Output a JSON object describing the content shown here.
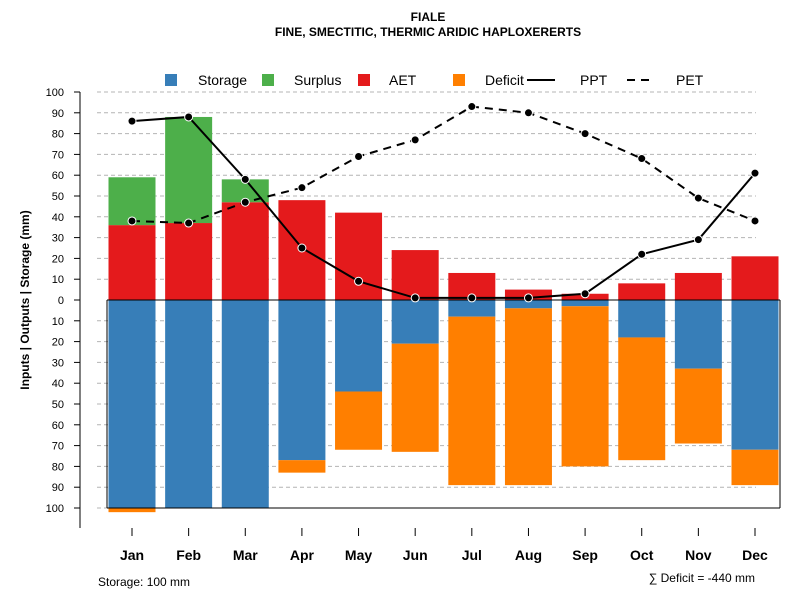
{
  "chart_data": {
    "type": "bar",
    "title": "FIALE",
    "subtitle": "FINE, SMECTITIC, THERMIC ARIDIC HAPLOXERERTS",
    "ylabel": "Inputs | Outputs | Storage    (mm)",
    "ylim": [
      -100,
      100
    ],
    "yticks": [
      100,
      90,
      80,
      70,
      60,
      50,
      40,
      30,
      20,
      10,
      0,
      10,
      20,
      30,
      40,
      50,
      60,
      70,
      80,
      90,
      100
    ],
    "categories": [
      "Jan",
      "Feb",
      "Mar",
      "Apr",
      "May",
      "Jun",
      "Jul",
      "Aug",
      "Sep",
      "Oct",
      "Nov",
      "Dec"
    ],
    "series": [
      {
        "name": "Storage",
        "color": "#377eb8",
        "values": [
          100,
          100,
          100,
          77,
          44,
          21,
          8,
          4,
          3,
          18,
          33,
          72
        ]
      },
      {
        "name": "Surplus",
        "color": "#4daf4a",
        "values": [
          23,
          51,
          11,
          0,
          0,
          0,
          0,
          0,
          0,
          0,
          0,
          0
        ]
      },
      {
        "name": "AET",
        "color": "#e41a1c",
        "values": [
          36,
          37,
          47,
          48,
          42,
          24,
          13,
          5,
          3,
          8,
          13,
          21
        ]
      },
      {
        "name": "Deficit",
        "color": "#ff7f00",
        "values": [
          2,
          0,
          0,
          6,
          28,
          52,
          81,
          85,
          77,
          59,
          36,
          17
        ]
      },
      {
        "name": "PPT",
        "values": [
          86,
          88,
          58,
          25,
          9,
          1,
          1,
          1,
          3,
          22,
          29,
          61
        ]
      },
      {
        "name": "PET",
        "values": [
          38,
          37,
          47,
          54,
          69,
          77,
          93,
          90,
          80,
          68,
          49,
          38
        ]
      }
    ],
    "legend_position": "top",
    "grid": true
  },
  "legend": [
    {
      "label": "Storage",
      "color": "#377eb8"
    },
    {
      "label": "Surplus",
      "color": "#4daf4a"
    },
    {
      "label": "AET",
      "color": "#e41a1c"
    },
    {
      "label": "Deficit",
      "color": "#ff7f00"
    },
    {
      "label": "PPT"
    },
    {
      "label": "PET"
    }
  ],
  "footer": {
    "storage": "Storage: 100 mm",
    "deficit": "∑ Deficit = -440 mm"
  }
}
